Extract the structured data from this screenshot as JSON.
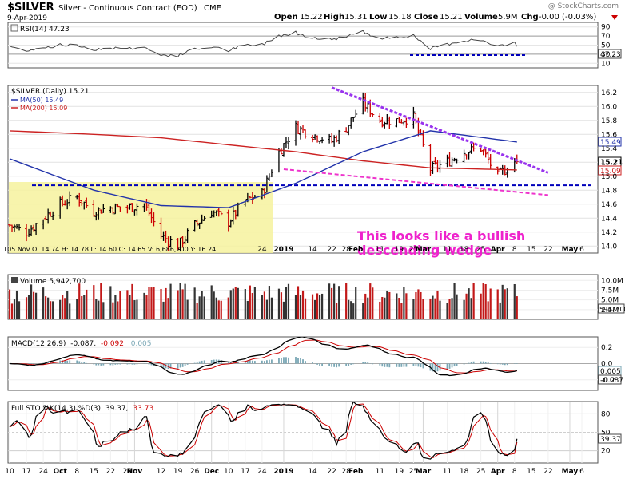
{
  "header": {
    "symbol": "$SILVER",
    "description": "Silver - Continuous Contract (EOD)",
    "exchange": "CME",
    "date": "9-Apr-2019",
    "open_label": "Open",
    "open": "15.22",
    "high_label": "High",
    "high": "15.31",
    "low_label": "Low",
    "low": "15.18",
    "close_label": "Close",
    "close": "15.21",
    "volume_label": "Volume",
    "volume": "5.9M",
    "chg_label": "Chg",
    "chg": "-0.00 (-0.03%)",
    "watermark": "@ StockCharts.com"
  },
  "rsi_panel": {
    "legend": "RSI(14) 47.23",
    "ticks": [
      "90",
      "70",
      "50",
      "30",
      "10"
    ],
    "value_badge": "47.23"
  },
  "price_panel": {
    "legend": "$SILVER (Daily) 15.21",
    "ma50_legend": "MA(50) 15.49",
    "ma200_legend": "MA(200) 15.09",
    "ticks": [
      "16.2",
      "16.0",
      "15.8",
      "15.6",
      "15.4",
      "15.2",
      "15.0",
      "14.8",
      "14.6",
      "14.4",
      "14.2",
      "14.0"
    ],
    "badge_ma50": "15.49",
    "badge_close": "15.21",
    "badge_ma200": "15.09",
    "info_line": "105 Nov O: 14.74   H: 14.78   L: 14.60   C: 14.65   V: 6,686,700   Y: 16.24",
    "annotation_line1": "This looks like a bullish",
    "annotation_line2": "descending wedge",
    "date_labels": [
      "24",
      "2019",
      "14",
      "22",
      "28",
      "Feb",
      "11",
      "19",
      "25",
      "Mar",
      "11",
      "18",
      "25",
      "Apr",
      "8",
      "15",
      "22",
      "May",
      "6"
    ]
  },
  "volume_panel": {
    "legend": "Volume 5,942,700",
    "ticks": [
      "10.0M",
      "7.5M",
      "5.0M",
      "2.5M"
    ],
    "value_badge": "5942700"
  },
  "macd_panel": {
    "legend_prefix": "MACD(12,26,9)",
    "macd_value": "-0.087,",
    "signal_value": "-0.092,",
    "hist_value": "0.005",
    "ticks": [
      "0.2",
      "0.0",
      "-0.2"
    ],
    "badge_hist": "0.005",
    "badge_macd": "-0.087"
  },
  "sto_panel": {
    "legend_prefix": "Full STO %K(14,3) %D(3)",
    "k_value": "39.37,",
    "d_value": "33.73",
    "ticks": [
      "80",
      "50",
      "20"
    ],
    "value_badge": "39.37"
  },
  "x_axis": [
    "10",
    "17",
    "24",
    "Oct",
    "8",
    "15",
    "22",
    "29",
    "Nov",
    "12",
    "19",
    "26",
    "Dec",
    "10",
    "17",
    "24",
    "2019",
    "14",
    "22",
    "28",
    "Feb",
    "11",
    "19",
    "25",
    "Mar",
    "11",
    "18",
    "25",
    "Apr",
    "8",
    "15",
    "22",
    "May",
    "6"
  ],
  "colors": {
    "price_up": "#000000",
    "price_down": "#cc0000",
    "ma50": "#2233aa",
    "ma200": "#cc2222",
    "support": "#0000bb",
    "wedge_top": "#9933ee",
    "wedge_bottom": "#ee33cc",
    "highlight_box": "#f6f29e",
    "annotation": "#ee22cc"
  },
  "chart_data": {
    "type": "candlestick",
    "title": "$SILVER Silver - Continuous Contract (EOD)",
    "x_range": [
      "2018-09-10",
      "2019-04-09"
    ],
    "price_ylim": [
      13.9,
      16.3
    ],
    "last_bar": {
      "date": "2019-04-09",
      "open": 15.22,
      "high": 15.31,
      "low": 15.18,
      "close": 15.21,
      "volume": 5942700
    },
    "price_anchors": [
      [
        "2018-09-10",
        14.3
      ],
      [
        "2018-09-17",
        14.2
      ],
      [
        "2018-09-24",
        14.4
      ],
      [
        "2018-10-01",
        14.6
      ],
      [
        "2018-10-08",
        14.7
      ],
      [
        "2018-10-15",
        14.5
      ],
      [
        "2018-10-22",
        14.55
      ],
      [
        "2018-10-29",
        14.55
      ],
      [
        "2018-11-05",
        14.6
      ],
      [
        "2018-11-12",
        14.15
      ],
      [
        "2018-11-19",
        14.0
      ],
      [
        "2018-11-26",
        14.3
      ],
      [
        "2018-12-03",
        14.5
      ],
      [
        "2018-12-10",
        14.35
      ],
      [
        "2018-12-17",
        14.65
      ],
      [
        "2018-12-24",
        14.75
      ],
      [
        "2018-12-31",
        15.35
      ],
      [
        "2019-01-07",
        15.7
      ],
      [
        "2019-01-14",
        15.6
      ],
      [
        "2019-01-22",
        15.5
      ],
      [
        "2019-01-28",
        15.7
      ],
      [
        "2019-02-04",
        16.05
      ],
      [
        "2019-02-11",
        15.8
      ],
      [
        "2019-02-19",
        15.8
      ],
      [
        "2019-02-25",
        15.85
      ],
      [
        "2019-03-04",
        15.1
      ],
      [
        "2019-03-11",
        15.2
      ],
      [
        "2019-03-18",
        15.35
      ],
      [
        "2019-03-25",
        15.4
      ],
      [
        "2019-04-01",
        15.0
      ],
      [
        "2019-04-08",
        15.21
      ]
    ],
    "ma50": [
      [
        "2018-09-10",
        15.25
      ],
      [
        "2018-10-15",
        14.8
      ],
      [
        "2018-11-12",
        14.58
      ],
      [
        "2018-12-10",
        14.55
      ],
      [
        "2019-01-07",
        14.9
      ],
      [
        "2019-02-04",
        15.35
      ],
      [
        "2019-03-04",
        15.65
      ],
      [
        "2019-04-09",
        15.49
      ]
    ],
    "ma200": [
      [
        "2018-09-10",
        15.65
      ],
      [
        "2018-10-15",
        15.6
      ],
      [
        "2018-11-12",
        15.55
      ],
      [
        "2018-12-10",
        15.45
      ],
      [
        "2019-01-07",
        15.35
      ],
      [
        "2019-02-04",
        15.22
      ],
      [
        "2019-03-04",
        15.12
      ],
      [
        "2019-04-09",
        15.09
      ]
    ],
    "support_level": 14.87,
    "wedge_upper": [
      [
        "2019-01-22",
        16.27
      ],
      [
        "2019-04-22",
        15.05
      ]
    ],
    "wedge_lower": [
      [
        "2019-01-02",
        15.1
      ],
      [
        "2019-04-22",
        14.73
      ]
    ],
    "rsi": {
      "ylim": [
        0,
        100
      ],
      "last": 47.23,
      "low_line": 28
    },
    "macd": {
      "last_macd": -0.087,
      "last_signal": -0.092,
      "last_hist": 0.005
    },
    "stochastic": {
      "last_k": 39.37,
      "last_d": 33.73
    }
  }
}
